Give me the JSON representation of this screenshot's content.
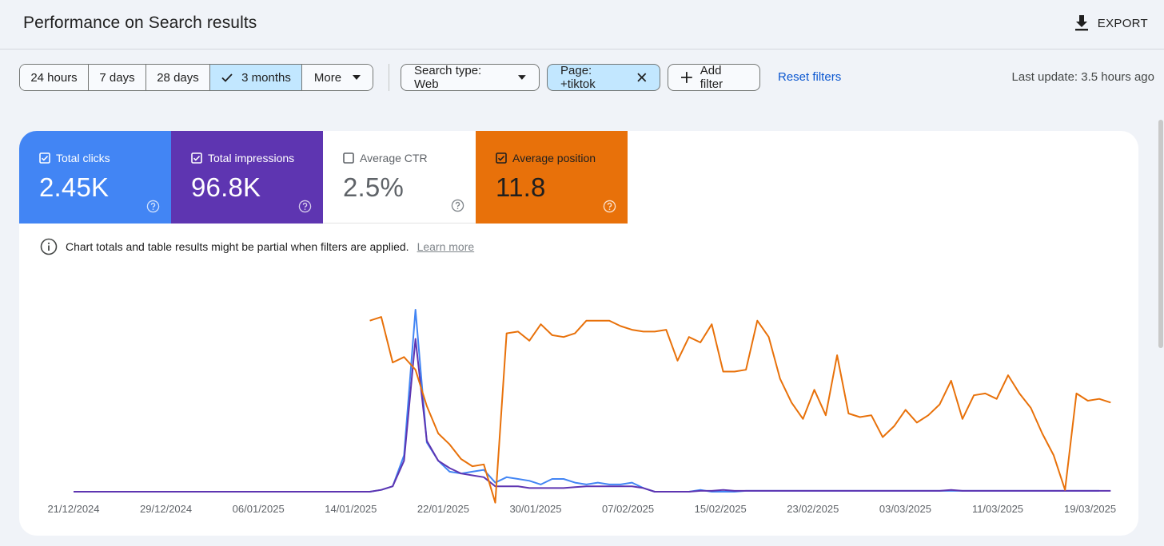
{
  "header": {
    "title": "Performance on Search results",
    "export_label": "EXPORT"
  },
  "filters": {
    "date_ranges": [
      "24 hours",
      "7 days",
      "28 days",
      "3 months",
      "More"
    ],
    "active_range": "3 months",
    "search_type": "Search type: Web",
    "page_filter": "Page: +tiktok",
    "add_filter": "Add filter",
    "reset": "Reset filters",
    "last_update": "Last update: 3.5 hours ago"
  },
  "metrics": [
    {
      "label": "Total clicks",
      "value": "2.45K",
      "checked": true,
      "color": "#4285f4"
    },
    {
      "label": "Total impressions",
      "value": "96.8K",
      "checked": true,
      "color": "#5e35b1"
    },
    {
      "label": "Average CTR",
      "value": "2.5%",
      "checked": false,
      "color": "#ffffff"
    },
    {
      "label": "Average position",
      "value": "11.8",
      "checked": true,
      "color": "#e8710a"
    }
  ],
  "notice": {
    "text": "Chart totals and table results might be partial when filters are applied.",
    "link": "Learn more"
  },
  "chart_data": {
    "type": "line",
    "x_tick_labels": [
      "21/12/2024",
      "29/12/2024",
      "06/01/2025",
      "14/01/2025",
      "22/01/2025",
      "30/01/2025",
      "07/02/2025",
      "15/02/2025",
      "23/02/2025",
      "03/03/2025",
      "11/03/2025",
      "19/03/2025"
    ],
    "y_axis_visible": false,
    "grid": false,
    "series": [
      {
        "name": "Total clicks",
        "color": "#4285f4",
        "relative": true,
        "values": [
          0,
          0,
          0,
          0,
          0,
          0,
          0,
          0,
          0,
          0,
          0,
          0,
          0,
          0,
          0,
          0,
          0,
          0,
          0,
          0,
          0,
          0,
          0,
          0,
          0,
          0,
          0,
          1,
          3,
          20,
          100,
          27,
          17,
          11,
          10,
          11,
          12,
          5,
          8,
          7,
          6,
          4,
          7,
          7,
          5,
          4,
          5,
          4,
          4,
          5,
          2,
          0,
          0,
          0,
          0,
          1,
          0,
          0,
          0,
          0.5,
          0.5,
          0.5,
          0.5,
          0.5,
          0.5,
          0.5,
          0.5,
          0.5,
          0.5,
          0.5,
          0.5,
          0.5,
          0.5,
          0.5,
          0.5,
          0.5,
          0.5,
          0.5,
          0.5,
          0.5,
          0.5,
          0.5,
          0.5,
          0.5,
          0.5,
          0.5,
          0.5,
          0.5,
          0.5,
          0.5,
          0.5
        ]
      },
      {
        "name": "Total impressions",
        "color": "#5e35b1",
        "relative": true,
        "values": [
          0,
          0,
          0,
          0,
          0,
          0,
          0,
          0,
          0,
          0,
          0,
          0,
          0,
          0,
          0,
          0,
          0,
          0,
          0,
          0,
          0,
          0,
          0,
          0,
          0,
          0,
          0,
          1,
          3,
          17,
          84,
          28,
          17,
          13,
          10,
          9,
          8,
          3,
          3,
          3,
          2,
          2,
          2,
          2,
          2.5,
          3,
          3,
          3,
          3,
          3,
          2,
          0,
          0,
          0,
          0,
          0.5,
          0.5,
          1,
          0.5,
          0.5,
          0.5,
          0.5,
          0.5,
          0.5,
          0.5,
          0.5,
          0.5,
          0.5,
          0.5,
          0.5,
          0.5,
          0.5,
          0.5,
          0.5,
          0.5,
          0.5,
          0.5,
          1,
          0.5,
          0.5,
          0.5,
          0.5,
          0.5,
          0.5,
          0.5,
          0.5,
          0.5,
          0.5,
          0.5,
          0.5,
          0.5,
          0.5
        ]
      },
      {
        "name": "Average position",
        "color": "#e8710a",
        "relative": true,
        "values": [
          null,
          null,
          null,
          null,
          null,
          null,
          null,
          null,
          null,
          null,
          null,
          null,
          null,
          null,
          null,
          null,
          null,
          null,
          null,
          null,
          null,
          null,
          null,
          null,
          null,
          null,
          94,
          96,
          71,
          74,
          67,
          47,
          32,
          26,
          18,
          14,
          15,
          -6,
          87,
          88,
          83,
          92,
          86,
          85,
          87,
          94,
          94,
          94,
          91,
          89,
          88,
          88,
          89,
          72,
          85,
          82,
          92,
          66,
          66,
          67,
          94,
          85,
          62,
          49,
          40,
          56,
          42,
          75,
          43,
          41,
          42,
          30,
          36,
          45,
          38,
          42,
          48,
          61,
          40,
          53,
          54,
          51,
          64,
          54,
          46,
          32,
          20,
          1,
          54,
          50,
          51,
          49
        ]
      }
    ]
  },
  "colors": {
    "accent_blue": "#4285f4",
    "accent_purple": "#5e35b1",
    "accent_orange": "#e8710a",
    "link_blue": "#0b57d0",
    "active_chip": "#c2e7ff"
  }
}
